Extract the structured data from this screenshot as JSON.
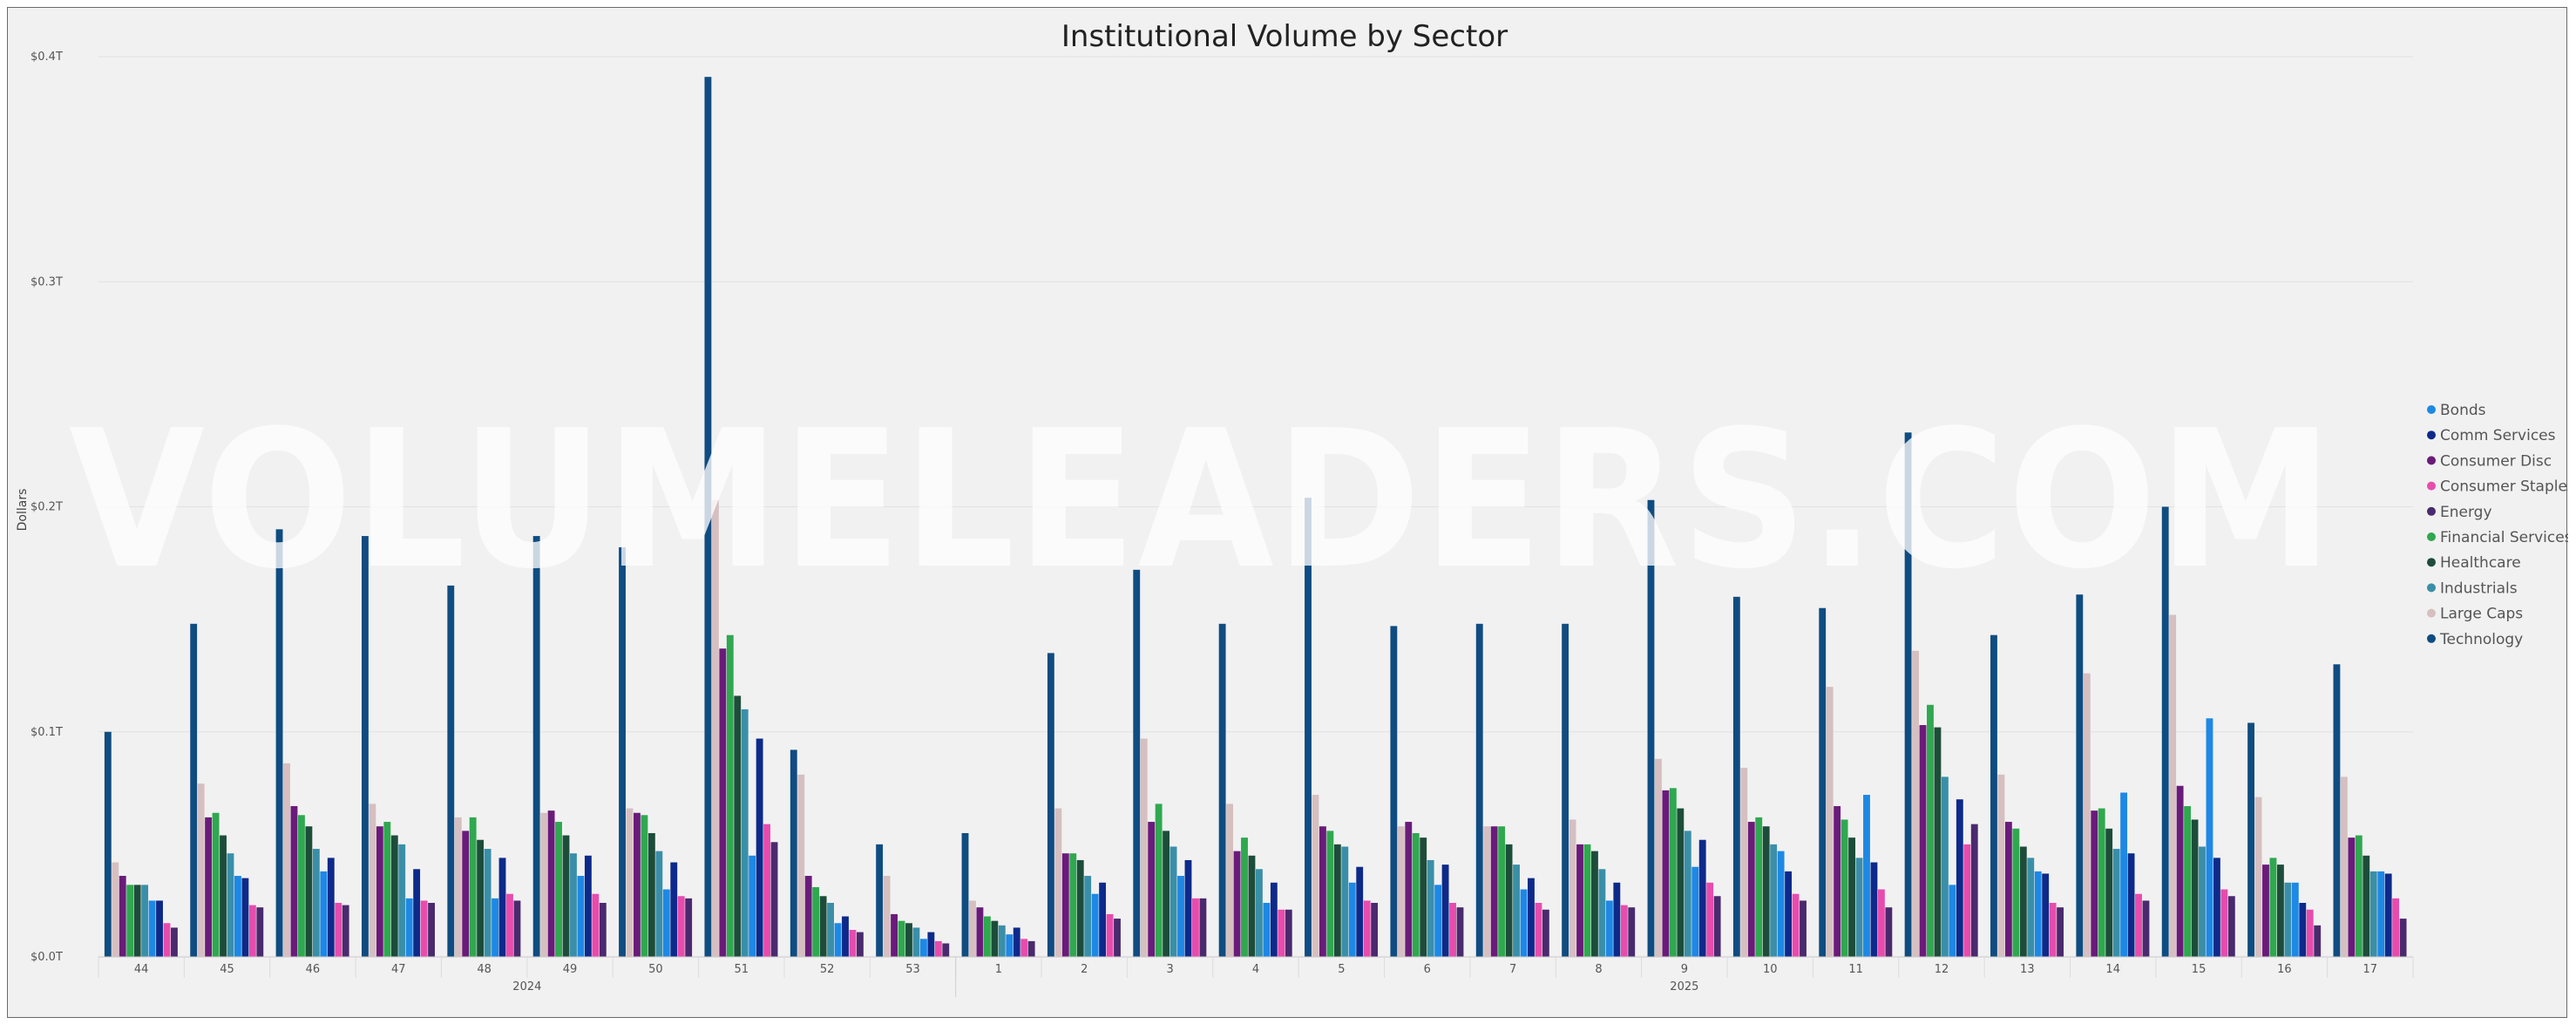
{
  "watermark": "VOLUMELEADERS.COM",
  "chart_data": {
    "type": "bar",
    "title": "Institutional Volume by Sector",
    "xlabel": "",
    "ylabel": "Dollars",
    "ylim": [
      0,
      0.4
    ],
    "yticks": [
      0,
      0.1,
      0.2,
      0.3,
      0.4
    ],
    "ytick_labels": [
      "$0.0T",
      "$0.1T",
      "$0.2T",
      "$0.3T",
      "$0.4T"
    ],
    "grid": true,
    "legend_position": "right",
    "categories": [
      "44",
      "45",
      "46",
      "47",
      "48",
      "49",
      "50",
      "51",
      "52",
      "53",
      "1",
      "2",
      "3",
      "4",
      "5",
      "6",
      "7",
      "8",
      "9",
      "10",
      "11",
      "12",
      "13",
      "14",
      "15",
      "16",
      "17"
    ],
    "year_groups": [
      {
        "label": "2024",
        "start": 0,
        "end": 9
      },
      {
        "label": "2025",
        "start": 10,
        "end": 26
      }
    ],
    "series": [
      {
        "name": "Bonds",
        "color": "#1e88e5",
        "values": [
          0.025,
          0.036,
          0.038,
          0.026,
          0.026,
          0.036,
          0.03,
          0.045,
          0.015,
          0.008,
          0.01,
          0.028,
          0.036,
          0.024,
          0.033,
          0.032,
          0.03,
          0.025,
          0.04,
          0.047,
          0.072,
          0.032,
          0.038,
          0.073,
          0.106,
          0.033,
          0.038
        ]
      },
      {
        "name": "Comm Services",
        "color": "#0d2a8a",
        "values": [
          0.025,
          0.035,
          0.044,
          0.039,
          0.044,
          0.045,
          0.042,
          0.097,
          0.018,
          0.011,
          0.013,
          0.033,
          0.043,
          0.033,
          0.04,
          0.041,
          0.035,
          0.033,
          0.052,
          0.038,
          0.042,
          0.07,
          0.037,
          0.046,
          0.044,
          0.024,
          0.037
        ]
      },
      {
        "name": "Consumer Disc",
        "color": "#6a1b7a",
        "values": [
          0.036,
          0.062,
          0.067,
          0.058,
          0.056,
          0.065,
          0.064,
          0.137,
          0.036,
          0.019,
          0.022,
          0.046,
          0.06,
          0.047,
          0.058,
          0.06,
          0.058,
          0.05,
          0.074,
          0.06,
          0.067,
          0.103,
          0.06,
          0.065,
          0.076,
          0.041,
          0.053
        ]
      },
      {
        "name": "Consumer Staples",
        "color": "#e74cad",
        "values": [
          0.015,
          0.023,
          0.024,
          0.025,
          0.028,
          0.028,
          0.027,
          0.059,
          0.012,
          0.007,
          0.008,
          0.019,
          0.026,
          0.021,
          0.025,
          0.024,
          0.024,
          0.023,
          0.033,
          0.028,
          0.03,
          0.05,
          0.024,
          0.028,
          0.03,
          0.021,
          0.026
        ]
      },
      {
        "name": "Energy",
        "color": "#4a2a6e",
        "values": [
          0.013,
          0.022,
          0.023,
          0.024,
          0.025,
          0.024,
          0.026,
          0.051,
          0.011,
          0.006,
          0.007,
          0.017,
          0.026,
          0.021,
          0.024,
          0.022,
          0.021,
          0.022,
          0.027,
          0.025,
          0.022,
          0.059,
          0.022,
          0.025,
          0.027,
          0.014,
          0.017
        ]
      },
      {
        "name": "Financial Services",
        "color": "#2fa84f",
        "values": [
          0.032,
          0.064,
          0.063,
          0.06,
          0.062,
          0.06,
          0.063,
          0.143,
          0.031,
          0.016,
          0.018,
          0.046,
          0.068,
          0.053,
          0.056,
          0.055,
          0.058,
          0.05,
          0.075,
          0.062,
          0.061,
          0.112,
          0.057,
          0.066,
          0.067,
          0.044,
          0.054
        ]
      },
      {
        "name": "Healthcare",
        "color": "#1d4d3a",
        "values": [
          0.032,
          0.054,
          0.058,
          0.054,
          0.052,
          0.054,
          0.055,
          0.116,
          0.027,
          0.015,
          0.016,
          0.043,
          0.056,
          0.045,
          0.05,
          0.053,
          0.05,
          0.047,
          0.066,
          0.058,
          0.053,
          0.102,
          0.049,
          0.057,
          0.061,
          0.041,
          0.045
        ]
      },
      {
        "name": "Industrials",
        "color": "#3a8fa8",
        "values": [
          0.032,
          0.046,
          0.048,
          0.05,
          0.048,
          0.046,
          0.047,
          0.11,
          0.024,
          0.013,
          0.014,
          0.036,
          0.049,
          0.039,
          0.049,
          0.043,
          0.041,
          0.039,
          0.056,
          0.05,
          0.044,
          0.08,
          0.044,
          0.048,
          0.049,
          0.033,
          0.038
        ]
      },
      {
        "name": "Large Caps",
        "color": "#d6bfc0",
        "values": [
          0.042,
          0.077,
          0.086,
          0.068,
          0.062,
          0.064,
          0.066,
          0.203,
          0.081,
          0.036,
          0.025,
          0.066,
          0.097,
          0.068,
          0.072,
          0.058,
          0.058,
          0.061,
          0.088,
          0.084,
          0.12,
          0.136,
          0.081,
          0.126,
          0.152,
          0.071,
          0.08
        ]
      },
      {
        "name": "Technology",
        "color": "#0f4c81",
        "values": [
          0.1,
          0.148,
          0.19,
          0.187,
          0.165,
          0.187,
          0.182,
          0.391,
          0.092,
          0.05,
          0.055,
          0.135,
          0.172,
          0.148,
          0.204,
          0.147,
          0.148,
          0.148,
          0.203,
          0.16,
          0.155,
          0.233,
          0.143,
          0.161,
          0.2,
          0.104,
          0.13
        ]
      }
    ]
  }
}
